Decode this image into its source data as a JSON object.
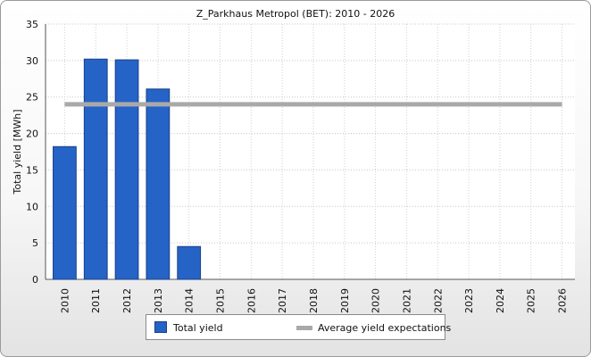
{
  "chart_data": {
    "type": "bar",
    "title": "Z_Parkhaus Metropol (BET): 2010 - 2026",
    "ylabel": "Total yield [MWh]",
    "xlabel": "",
    "ylim": [
      0,
      35
    ],
    "yticks": [
      0,
      5,
      10,
      15,
      20,
      25,
      30,
      35
    ],
    "categories": [
      "2010",
      "2011",
      "2012",
      "2013",
      "2014",
      "2015",
      "2016",
      "2017",
      "2018",
      "2019",
      "2020",
      "2021",
      "2022",
      "2023",
      "2024",
      "2025",
      "2026"
    ],
    "series": [
      {
        "name": "Total yield",
        "type": "bar",
        "color": "#2563c6",
        "values": [
          18.2,
          30.2,
          30.1,
          26.1,
          4.5,
          null,
          null,
          null,
          null,
          null,
          null,
          null,
          null,
          null,
          null,
          null,
          null
        ]
      },
      {
        "name": "Average yield expectations",
        "type": "line",
        "color": "#a9a9a9",
        "value": 24.0
      }
    ],
    "grid": true,
    "legend_position": "bottom"
  }
}
